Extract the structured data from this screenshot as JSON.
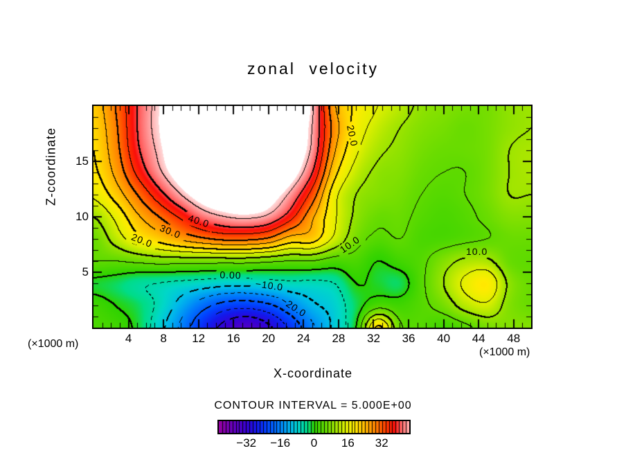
{
  "title": "zonal velocity",
  "axes": {
    "x": {
      "label": "X-coordinate",
      "unit_left": "(×1000 m)",
      "unit_right": "(×1000 m)",
      "ticks": [
        4,
        8,
        12,
        16,
        20,
        24,
        28,
        32,
        36,
        40,
        44,
        48
      ],
      "range": [
        0,
        50
      ],
      "minor_tick_step": 1
    },
    "z": {
      "label": "Z-coordinate",
      "ticks": [
        5,
        10,
        15
      ],
      "range": [
        0,
        20
      ],
      "minor_tick_step": 1
    }
  },
  "legend": {
    "contour_interval_text": "CONTOUR INTERVAL = 5.000E+00",
    "colorbar_tick_labels": [
      "−32",
      "−16",
      "0",
      "16",
      "32"
    ],
    "colorbar_tick_values": [
      -32,
      -16,
      0,
      16,
      32
    ],
    "colorbar_range": [
      -45,
      45
    ],
    "colorbar_cells": 56
  },
  "contour_labels": [
    {
      "text": "20.0",
      "x": 29.6,
      "z": 17.3,
      "rot": 78
    },
    {
      "text": "40.0",
      "x": 12.0,
      "z": 9.6,
      "rot": 18
    },
    {
      "text": "30.0",
      "x": 8.8,
      "z": 8.7,
      "rot": 22
    },
    {
      "text": "20.0",
      "x": 5.5,
      "z": 7.9,
      "rot": 22
    },
    {
      "text": "10.0",
      "x": 29.3,
      "z": 7.5,
      "rot": -35
    },
    {
      "text": "0.00",
      "x": 15.7,
      "z": 4.75,
      "rot": 2
    },
    {
      "text": "−10.0",
      "x": 20.1,
      "z": 3.8,
      "rot": 8
    },
    {
      "text": "−20.0",
      "x": 22.9,
      "z": 1.9,
      "rot": 33
    },
    {
      "text": "10.0",
      "x": 43.8,
      "z": 6.9,
      "rot": 0
    }
  ],
  "chart_data": {
    "type": "heatmap",
    "subtype": "filled-contour",
    "title": "zonal velocity",
    "xlabel": "X-coordinate",
    "ylabel": "Z-coordinate",
    "units": "×1000 m",
    "contour_interval": 5,
    "negative_contours": "dashed",
    "thick_contour_multiple": 10,
    "x_range": [
      0,
      50
    ],
    "z_range": [
      0,
      20
    ],
    "fill_range": [
      -45,
      45
    ],
    "white_above": 47,
    "grid_x": [
      0,
      2.5,
      5,
      7.5,
      10,
      12.5,
      15,
      17.5,
      20,
      22.5,
      25,
      27.5,
      30,
      32.5,
      35,
      37.5,
      40,
      42.5,
      45,
      47.5,
      50
    ],
    "grid_z": [
      0,
      2,
      4,
      6,
      8,
      10,
      12,
      14,
      16,
      18,
      20
    ],
    "values_rows_z_ascending": [
      [
        3,
        2,
        -1,
        -8,
        -16,
        -25,
        -32,
        -35,
        -31,
        -24,
        -16,
        -9,
        0,
        21,
        6,
        4,
        2,
        4,
        7,
        8,
        8
      ],
      [
        2,
        0,
        -2,
        -6,
        -12,
        -18,
        -22,
        -23,
        -21,
        -16,
        -11,
        -8,
        -2,
        3,
        2,
        4,
        7,
        12,
        14,
        8,
        6
      ],
      [
        -1,
        -2,
        -4,
        -5,
        -6,
        -7,
        -8,
        -8,
        -7,
        -6,
        -6,
        -5,
        0,
        -1,
        -2,
        4,
        10,
        16,
        19,
        9,
        6
      ],
      [
        5,
        5,
        6,
        7,
        7,
        7,
        7,
        7,
        6,
        5,
        5,
        3,
        3,
        0,
        2,
        4,
        8,
        11,
        11,
        6,
        5
      ],
      [
        6,
        12,
        18,
        22,
        26,
        29,
        31,
        31,
        29,
        23,
        22,
        14,
        7,
        4,
        5,
        3,
        3,
        4,
        5,
        6,
        6
      ],
      [
        10,
        16,
        24,
        30,
        36,
        42,
        45,
        46,
        44,
        37,
        26,
        16,
        9,
        6,
        6,
        4,
        3,
        4,
        6,
        8,
        8
      ],
      [
        16,
        22,
        30,
        38,
        45,
        50,
        52,
        52,
        50,
        44,
        33,
        17,
        10,
        8,
        7,
        5,
        4,
        5,
        7,
        10,
        10
      ],
      [
        19,
        26,
        36,
        44,
        50,
        53,
        55,
        55,
        54,
        50,
        40,
        22,
        13,
        9,
        8,
        6,
        5,
        5,
        7,
        10,
        11
      ],
      [
        20,
        28,
        39,
        46,
        52,
        55,
        57,
        57,
        56,
        52,
        44,
        26,
        16,
        11,
        9,
        7,
        6,
        6,
        7,
        10,
        11
      ],
      [
        21,
        29,
        40,
        47,
        52,
        56,
        58,
        58,
        57,
        53,
        45,
        28,
        18,
        13,
        10,
        8,
        7,
        6,
        7,
        9,
        10
      ],
      [
        22,
        30,
        40,
        47,
        52,
        56,
        58,
        58,
        57,
        53,
        46,
        26,
        19,
        15,
        12,
        9,
        8,
        7,
        7,
        9,
        10
      ]
    ],
    "colormap_stops": [
      [
        -45,
        [
          150,
          0,
          160
        ]
      ],
      [
        -38,
        [
          100,
          0,
          190
        ]
      ],
      [
        -32,
        [
          55,
          0,
          210
        ]
      ],
      [
        -27,
        [
          20,
          25,
          235
        ]
      ],
      [
        -22,
        [
          0,
          70,
          255
        ]
      ],
      [
        -16,
        [
          0,
          130,
          250
        ]
      ],
      [
        -11,
        [
          0,
          185,
          235
        ]
      ],
      [
        -7,
        [
          0,
          215,
          200
        ]
      ],
      [
        -3,
        [
          0,
          220,
          135
        ]
      ],
      [
        0,
        [
          45,
          210,
          0
        ]
      ],
      [
        6,
        [
          105,
          220,
          0
        ]
      ],
      [
        11,
        [
          170,
          230,
          0
        ]
      ],
      [
        15,
        [
          225,
          240,
          0
        ]
      ],
      [
        19,
        [
          255,
          235,
          0
        ]
      ],
      [
        24,
        [
          255,
          185,
          0
        ]
      ],
      [
        29,
        [
          255,
          130,
          0
        ]
      ],
      [
        34,
        [
          255,
          60,
          0
        ]
      ],
      [
        38,
        [
          250,
          15,
          10
        ]
      ],
      [
        41,
        [
          255,
          95,
          95
        ]
      ],
      [
        45,
        [
          255,
          175,
          175
        ]
      ],
      [
        47,
        [
          255,
          218,
          218
        ]
      ]
    ]
  }
}
